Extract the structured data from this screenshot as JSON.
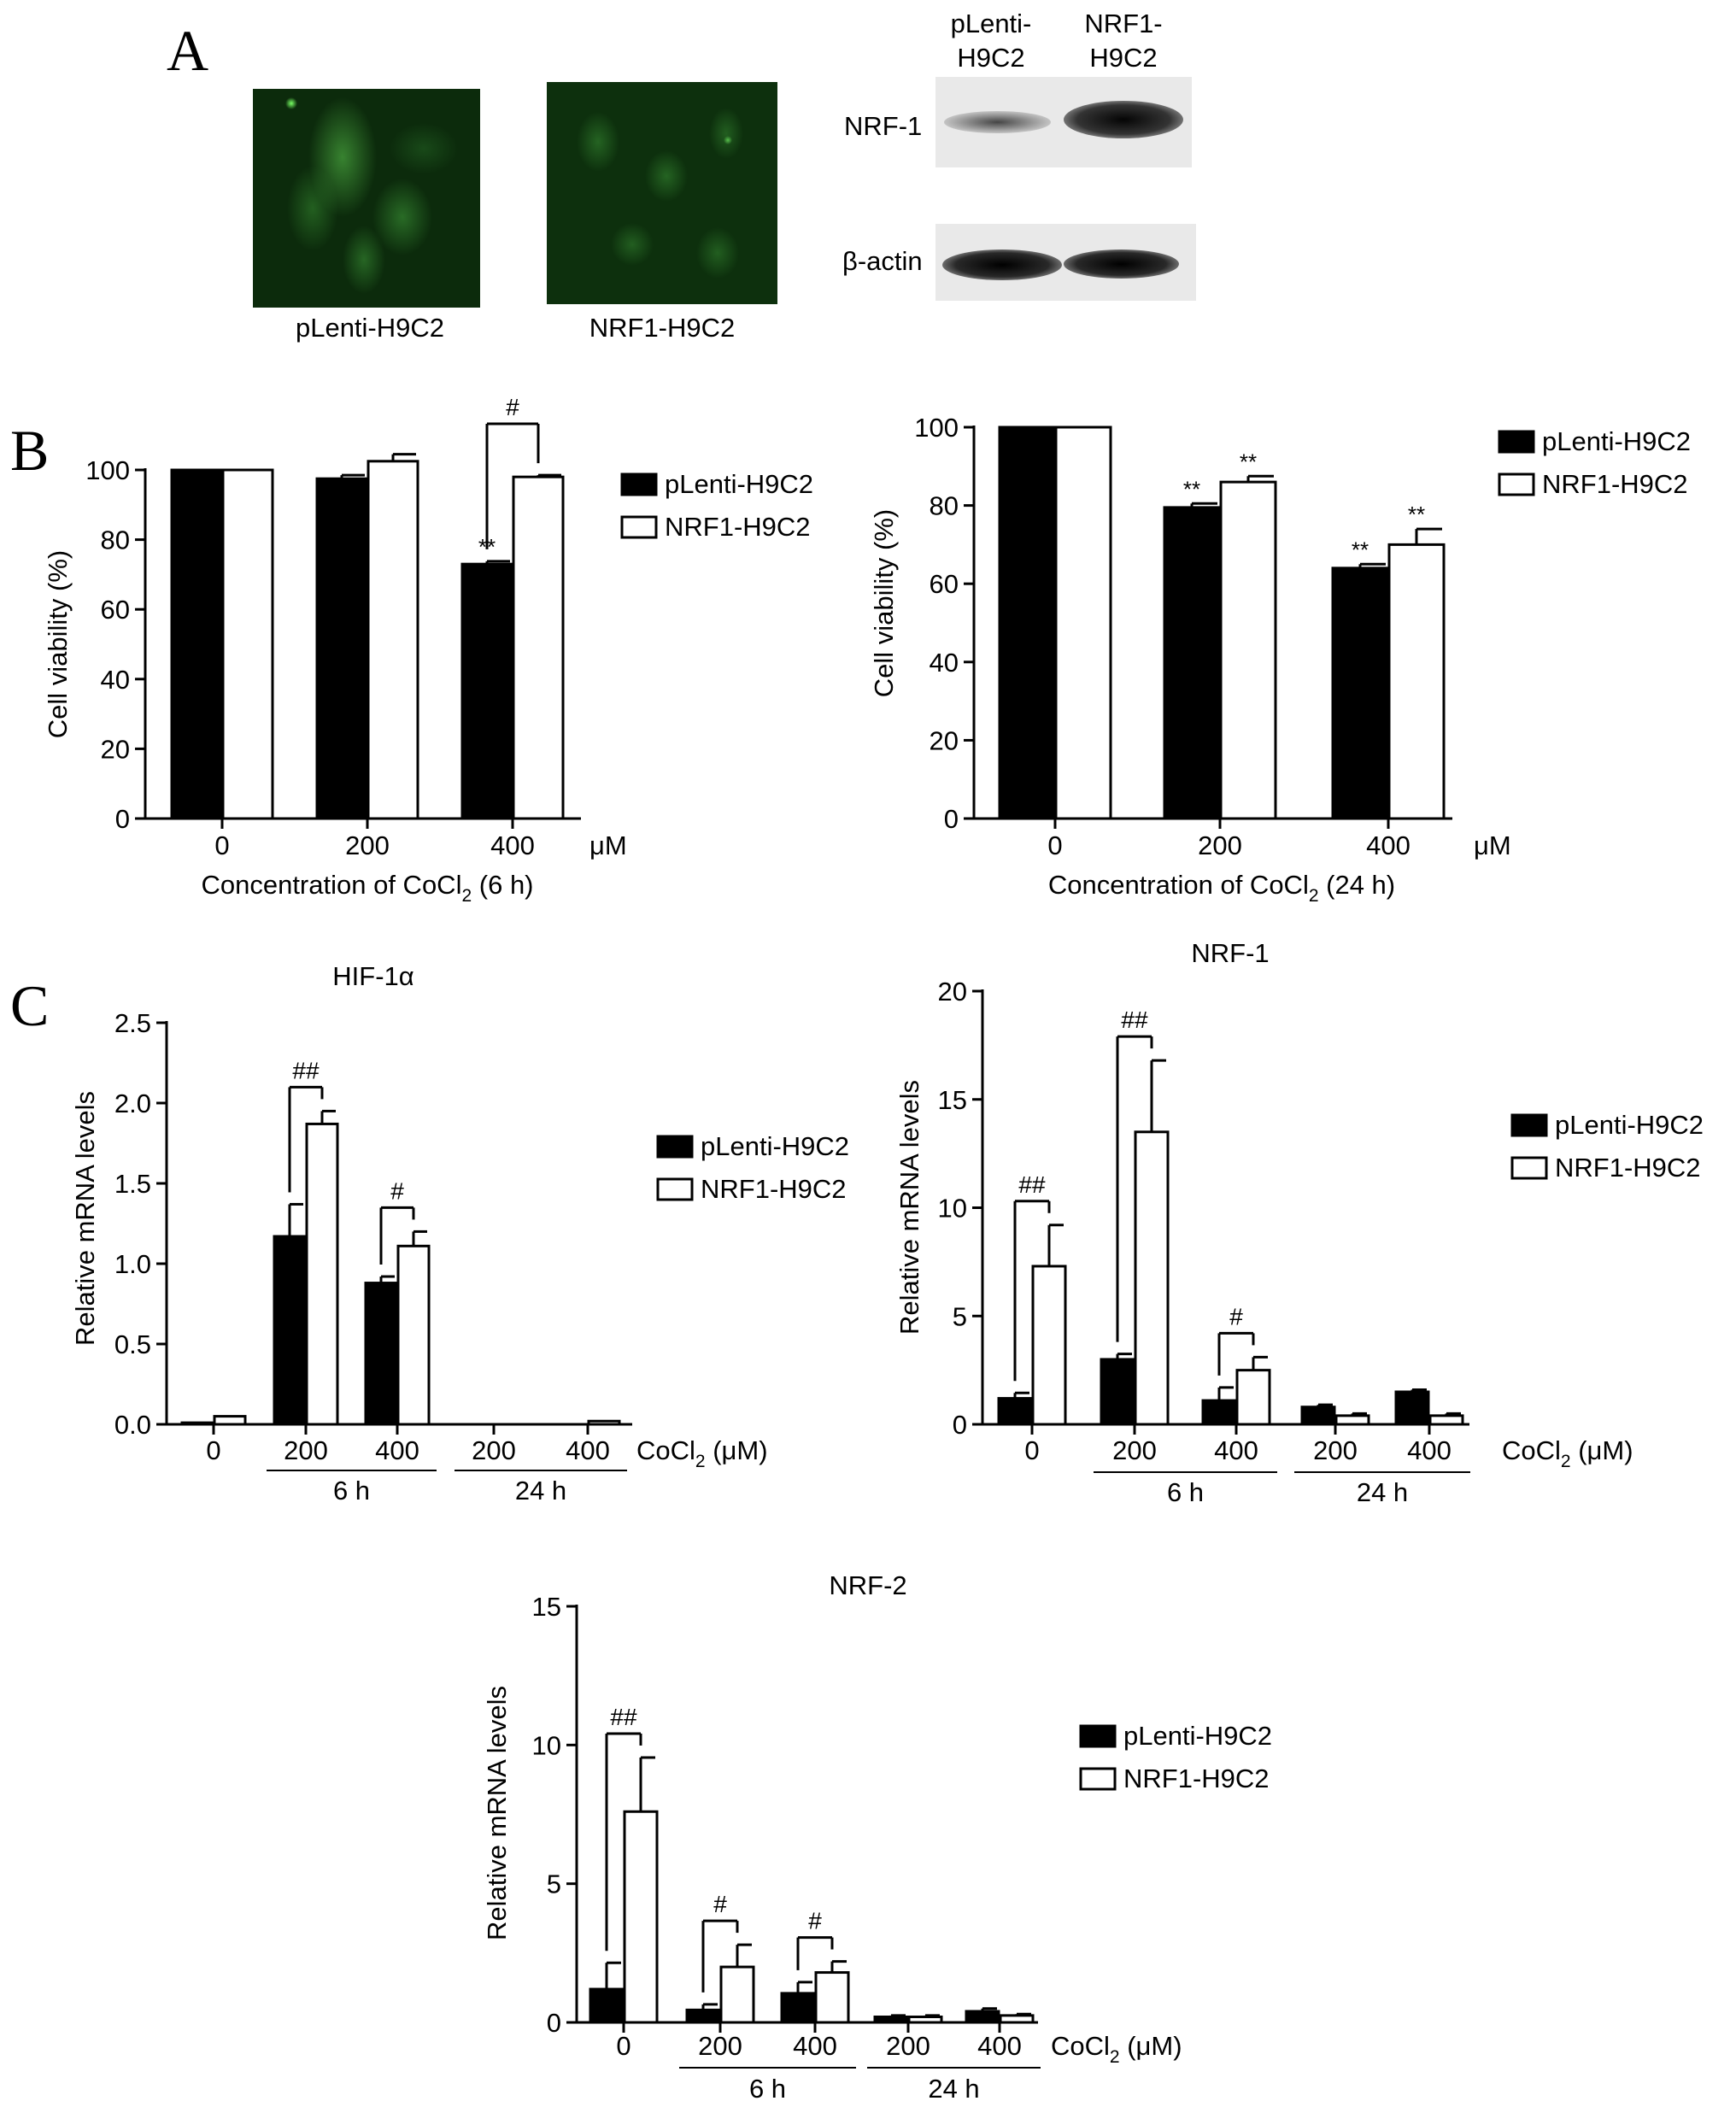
{
  "panels": {
    "A": {
      "letter": "A",
      "image_captions": [
        "pLenti-H9C2",
        "NRF1-H9C2"
      ],
      "blot_lane_labels": [
        [
          "pLenti-",
          "H9C2"
        ],
        [
          "NRF1-",
          "H9C2"
        ]
      ],
      "blot_row_labels": [
        "NRF-1",
        "β-actin"
      ]
    },
    "B": {
      "letter": "B"
    },
    "C": {
      "letter": "C"
    }
  },
  "chart_data": [
    {
      "id": "B-6h",
      "type": "bar",
      "categories": [
        "0",
        "200",
        "400"
      ],
      "unit": "μM",
      "xlabel": "Concentration of CoCl₂ (6 h)",
      "ylabel": "Cell viability (%)",
      "ylim": [
        0,
        100
      ],
      "yticks": [
        "0",
        "20",
        "40",
        "60",
        "80",
        "100"
      ],
      "legend": [
        "pLenti-H9C2",
        "NRF1-H9C2"
      ],
      "series": [
        {
          "name": "pLenti-H9C2",
          "values": [
            100,
            97.5,
            73
          ],
          "errors": [
            0,
            1,
            0.8
          ],
          "marks": [
            "",
            "",
            "**"
          ]
        },
        {
          "name": "NRF1-H9C2",
          "values": [
            100,
            102.5,
            98
          ],
          "errors": [
            0,
            2,
            0.5
          ],
          "marks": [
            "",
            "",
            ""
          ]
        }
      ],
      "comparisons": [
        {
          "group": 2,
          "label": "#"
        }
      ]
    },
    {
      "id": "B-24h",
      "type": "bar",
      "categories": [
        "0",
        "200",
        "400"
      ],
      "unit": "μM",
      "xlabel": "Concentration of CoCl₂ (24 h)",
      "ylabel": "Cell viability (%)",
      "ylim": [
        0,
        100
      ],
      "yticks": [
        "0",
        "20",
        "40",
        "60",
        "80",
        "100"
      ],
      "legend": [
        "pLenti-H9C2",
        "NRF1-H9C2"
      ],
      "series": [
        {
          "name": "pLenti-H9C2",
          "values": [
            100,
            79.5,
            64
          ],
          "errors": [
            0,
            1,
            1
          ],
          "marks": [
            "",
            "**",
            "**"
          ]
        },
        {
          "name": "NRF1-H9C2",
          "values": [
            100,
            86,
            70
          ],
          "errors": [
            0,
            1.5,
            4
          ],
          "marks": [
            "",
            "**",
            "**"
          ]
        }
      ],
      "comparisons": []
    },
    {
      "id": "C-HIF",
      "type": "bar",
      "title": "HIF-1α",
      "categories": [
        "0",
        "200",
        "400",
        "200",
        "400"
      ],
      "unit": "CoCl₂ (μM)",
      "groups": [
        {
          "label": "6 h",
          "from": 1,
          "to": 2
        },
        {
          "label": "24 h",
          "from": 3,
          "to": 4
        }
      ],
      "ylabel": "Relative mRNA levels",
      "ylim": [
        0,
        2.5
      ],
      "yticks": [
        "0.0",
        "0.5",
        "1.0",
        "1.5",
        "2.0",
        "2.5"
      ],
      "legend": [
        "pLenti-H9C2",
        "NRF1-H9C2"
      ],
      "series": [
        {
          "name": "pLenti-H9C2",
          "values": [
            0.01,
            1.17,
            0.88,
            0.0,
            0.0
          ],
          "errors": [
            0,
            0.2,
            0.04,
            0,
            0
          ]
        },
        {
          "name": "NRF1-H9C2",
          "values": [
            0.05,
            1.87,
            1.11,
            0.0,
            0.02
          ],
          "errors": [
            0,
            0.08,
            0.09,
            0,
            0
          ]
        }
      ],
      "comparisons": [
        {
          "group": 1,
          "label": "##"
        },
        {
          "group": 2,
          "label": "#"
        }
      ]
    },
    {
      "id": "C-NRF1",
      "type": "bar",
      "title": "NRF-1",
      "categories": [
        "0",
        "200",
        "400",
        "200",
        "400"
      ],
      "unit": "CoCl₂ (μM)",
      "groups": [
        {
          "label": "6 h",
          "from": 1,
          "to": 2
        },
        {
          "label": "24 h",
          "from": 3,
          "to": 4
        }
      ],
      "ylabel": "Relative mRNA levels",
      "ylim": [
        0,
        20
      ],
      "yticks": [
        "0",
        "5",
        "10",
        "15",
        "20"
      ],
      "legend": [
        "pLenti-H9C2",
        "NRF1-H9C2"
      ],
      "series": [
        {
          "name": "pLenti-H9C2",
          "values": [
            1.2,
            3.0,
            1.1,
            0.8,
            1.5
          ],
          "errors": [
            0.25,
            0.25,
            0.6,
            0.1,
            0.1
          ]
        },
        {
          "name": "NRF1-H9C2",
          "values": [
            7.3,
            13.5,
            2.5,
            0.4,
            0.4
          ],
          "errors": [
            1.9,
            3.3,
            0.6,
            0.1,
            0.1
          ]
        }
      ],
      "comparisons": [
        {
          "group": 0,
          "label": "##"
        },
        {
          "group": 1,
          "label": "##"
        },
        {
          "group": 2,
          "label": "#"
        }
      ]
    },
    {
      "id": "C-NRF2",
      "type": "bar",
      "title": "NRF-2",
      "categories": [
        "0",
        "200",
        "400",
        "200",
        "400"
      ],
      "unit": "CoCl₂ (μM)",
      "groups": [
        {
          "label": "6 h",
          "from": 1,
          "to": 2
        },
        {
          "label": "24 h",
          "from": 3,
          "to": 4
        }
      ],
      "ylabel": "Relative mRNA levels",
      "ylim": [
        0,
        15
      ],
      "yticks": [
        "0",
        "5",
        "10",
        "15"
      ],
      "legend": [
        "pLenti-H9C2",
        "NRF1-H9C2"
      ],
      "series": [
        {
          "name": "pLenti-H9C2",
          "values": [
            1.2,
            0.45,
            1.05,
            0.2,
            0.4
          ],
          "errors": [
            0.95,
            0.2,
            0.4,
            0.05,
            0.1
          ]
        },
        {
          "name": "NRF1-H9C2",
          "values": [
            7.6,
            2.0,
            1.8,
            0.2,
            0.25
          ],
          "errors": [
            1.95,
            0.8,
            0.4,
            0.05,
            0.05
          ]
        }
      ],
      "comparisons": [
        {
          "group": 0,
          "label": "##"
        },
        {
          "group": 1,
          "label": "#"
        },
        {
          "group": 2,
          "label": "#"
        }
      ]
    }
  ]
}
